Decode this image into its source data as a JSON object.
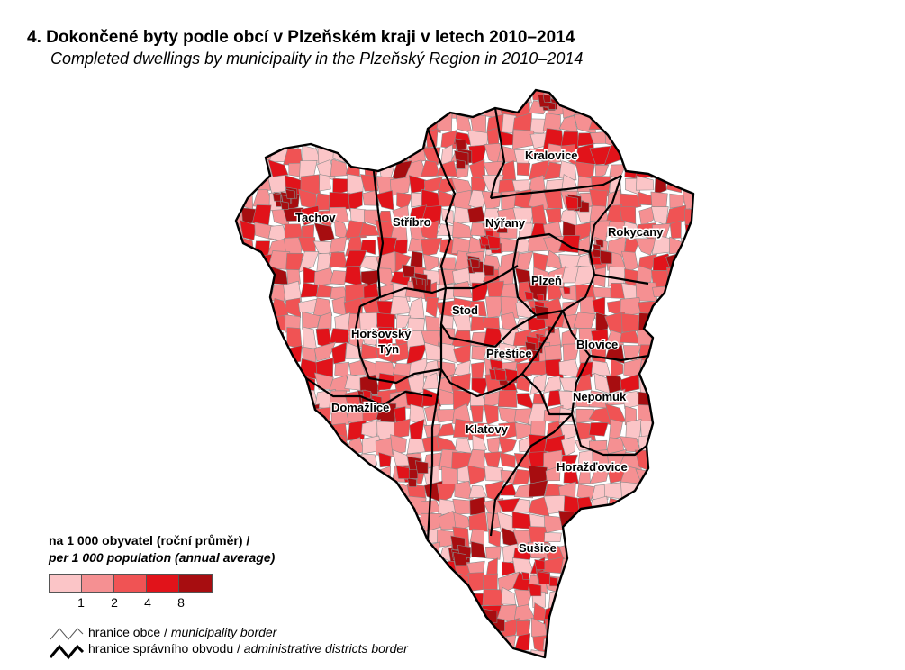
{
  "title": "4. Dokončené byty podle obcí v Plzeňském kraji v letech 2010–2014",
  "subtitle": "Completed dwellings by municipality in the Plzeňský Region in 2010–2014",
  "districts": [
    "Kralovice",
    "Tachov",
    "Stříbro",
    "Nýřany",
    "Rokycany",
    "Plzeň",
    "Stod",
    "Horšovský Týn",
    "Přeštice",
    "Blovice",
    "Nepomuk",
    "Domažlice",
    "Klatovy",
    "Horažďovice",
    "Sušice"
  ],
  "district_name_lines": {
    "horsovsky_1": "Horšovský",
    "horsovsky_2": "Týn"
  },
  "legend": {
    "title": "na 1 000 obyvatel (roční průměr) /",
    "title_en": "per 1 000 population (annual average)",
    "classes": [
      "#fbc5c7",
      "#f59092",
      "#f05354",
      "#e1131a",
      "#a70d10"
    ],
    "ticks": [
      "1",
      "2",
      "4",
      "8"
    ],
    "municipality_border_cs": "hranice obce /",
    "municipality_border_en": "municipality border",
    "district_border_cs": "hranice správního obvodu /",
    "district_border_en": "administrative districts border"
  }
}
